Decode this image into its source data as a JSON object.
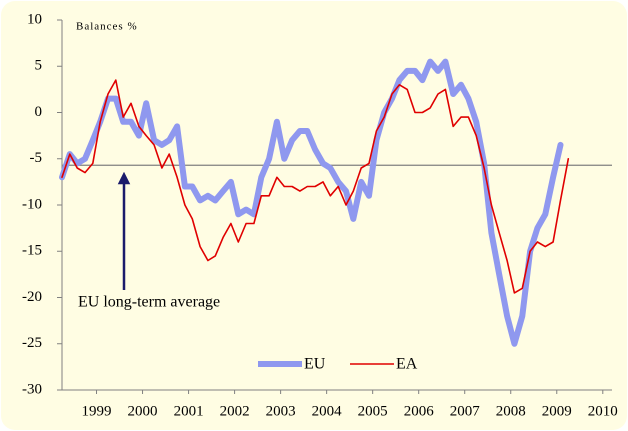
{
  "chart_data": {
    "type": "line",
    "y_label": "Balances %",
    "x": [
      1998.75,
      1998.92,
      1999.08,
      1999.25,
      1999.42,
      1999.58,
      1999.75,
      1999.92,
      2000.08,
      2000.25,
      2000.42,
      2000.58,
      2000.75,
      2000.92,
      2001.08,
      2001.25,
      2001.42,
      2001.58,
      2001.75,
      2001.92,
      2002.08,
      2002.25,
      2002.42,
      2002.58,
      2002.75,
      2002.92,
      2003.08,
      2003.25,
      2003.42,
      2003.58,
      2003.75,
      2003.92,
      2004.08,
      2004.25,
      2004.42,
      2004.58,
      2004.75,
      2004.92,
      2005.08,
      2005.25,
      2005.42,
      2005.58,
      2005.75,
      2005.92,
      2006.08,
      2006.25,
      2006.42,
      2006.58,
      2006.75,
      2006.92,
      2007.08,
      2007.25,
      2007.42,
      2007.58,
      2007.75,
      2007.92,
      2008.08,
      2008.25,
      2008.42,
      2008.58,
      2008.75,
      2008.92,
      2009.08,
      2009.25,
      2009.42,
      2009.58,
      2009.75
    ],
    "series": [
      {
        "name": "EU",
        "color": "#8f98ef",
        "width": 6,
        "values": [
          -7,
          -4.5,
          -5.5,
          -5,
          -3,
          -1,
          1.5,
          1.5,
          -1,
          -1,
          -2.5,
          1,
          -3,
          -3.5,
          -3,
          -1.5,
          -8,
          -8,
          -9.5,
          -9,
          -9.5,
          -8.5,
          -7.5,
          -11,
          -10.5,
          -11,
          -7,
          -5,
          -1,
          -5,
          -3,
          -2,
          -2,
          -4,
          -5.5,
          -6,
          -7.5,
          -8.5,
          -11.5,
          -7.5,
          -9,
          -3,
          0,
          1.5,
          3.5,
          4.5,
          4.5,
          3.5,
          5.5,
          4.5,
          5.5,
          2,
          3,
          1.5,
          -1,
          -5.5,
          -13,
          -17.5,
          -22,
          -25,
          -22,
          -15,
          -12.5,
          -11,
          -7,
          -3.5,
          null
        ]
      },
      {
        "name": "EA",
        "color": "#e00000",
        "width": 1.6,
        "values": [
          -7,
          -4.5,
          -6,
          -6.5,
          -5.5,
          -1,
          2,
          3.5,
          -0.5,
          1,
          -1.5,
          -2.5,
          -3.5,
          -6,
          -4.5,
          -7,
          -10,
          -11.5,
          -14.5,
          -16,
          -15.5,
          -13.5,
          -12,
          -14,
          -12,
          -12,
          -9,
          -9,
          -7,
          -8,
          -8,
          -8.5,
          -8,
          -8,
          -7.5,
          -9,
          -8,
          -10,
          -8.5,
          -6,
          -5.5,
          -2,
          -0.5,
          2,
          3,
          2.5,
          0,
          0,
          0.5,
          2,
          2.5,
          -1.5,
          -0.5,
          -0.5,
          -2.5,
          -6,
          -10,
          -13,
          -16,
          -19.5,
          -19,
          -15,
          -14,
          -14.5,
          -14,
          -9.5,
          -5
        ]
      }
    ],
    "average": -5.7,
    "average_label": "EU long-term average",
    "xlim": [
      1998.75,
      2010.7
    ],
    "ylim": [
      -30,
      10
    ],
    "yticks": [
      -30,
      -25,
      -20,
      -15,
      -10,
      -5,
      0,
      5,
      10
    ],
    "xticks": [
      {
        "value": 1999.5,
        "label": "1999"
      },
      {
        "value": 2000.5,
        "label": "2000"
      },
      {
        "value": 2001.5,
        "label": "2001"
      },
      {
        "value": 2002.5,
        "label": "2002"
      },
      {
        "value": 2003.5,
        "label": "2003"
      },
      {
        "value": 2004.5,
        "label": "2004"
      },
      {
        "value": 2005.5,
        "label": "2005"
      },
      {
        "value": 2006.5,
        "label": "2006"
      },
      {
        "value": 2007.5,
        "label": "2007"
      },
      {
        "value": 2008.5,
        "label": "2008"
      },
      {
        "value": 2009.5,
        "label": "2009"
      },
      {
        "value": 2010.5,
        "label": "2010"
      }
    ],
    "legend": "bottom",
    "background": "#fffde3"
  }
}
